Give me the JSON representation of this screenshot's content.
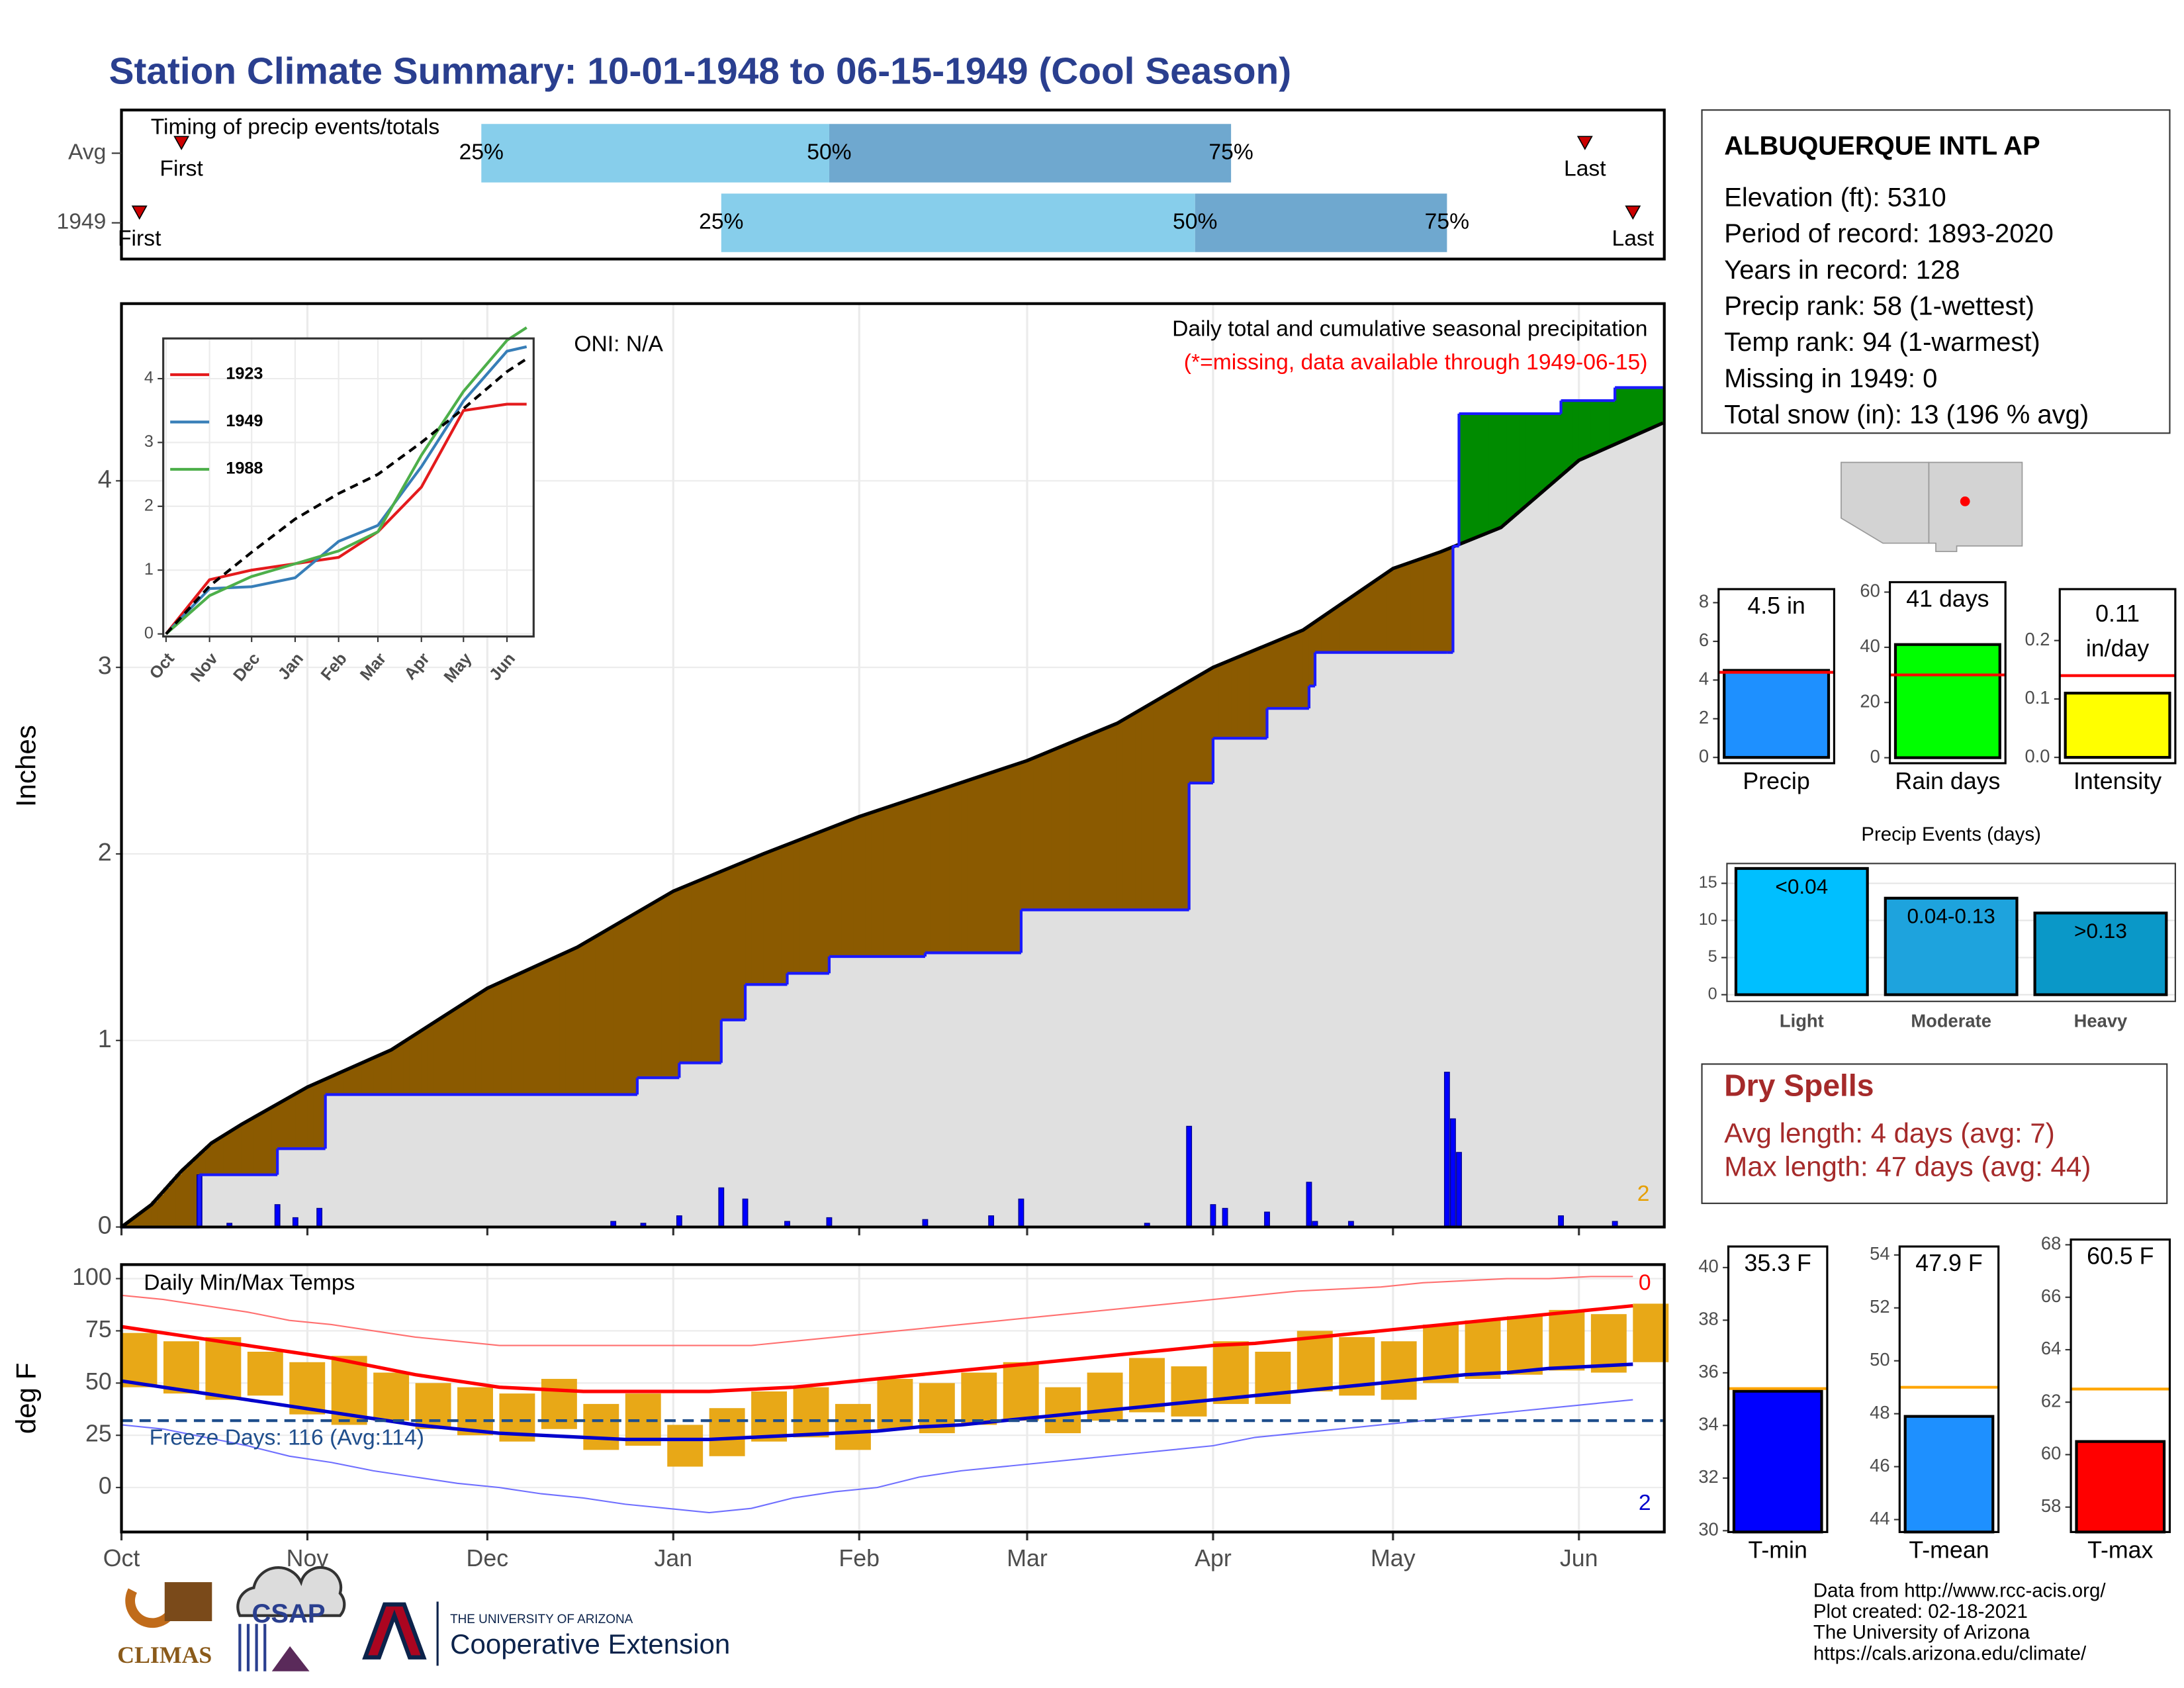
{
  "title": "Station Climate Summary: 10-01-1948 to 06-15-1949 (Cool Season)",
  "station": {
    "name": "ALBUQUERQUE INTL AP",
    "lines": [
      "Elevation (ft): 5310",
      "Period of record: 1893-2020",
      "Years in record: 128",
      "Precip rank: 58 (1-wettest)",
      "Temp rank: 94 (1-warmest)",
      "Missing in 1949: 0",
      "Total snow (in): 13 (196 % avg)"
    ]
  },
  "dry_spells": {
    "title": "Dry Spells",
    "lines": [
      "Avg length: 4 days (avg: 7)",
      "Max length: 47 days (avg: 44)"
    ]
  },
  "footer": {
    "credits": [
      "Data from http://www.rcc-acis.org/",
      "Plot created: 02-18-2021",
      "The University of Arizona",
      "https://cals.arizona.edu/climate/"
    ],
    "logos": [
      "CLIMAS",
      "CSAP",
      "THE UNIVERSITY OF ARIZONA",
      "Cooperative Extension"
    ]
  },
  "chart_data": [
    {
      "type": "timing",
      "title": "Timing of precip events/totals",
      "xlim": [
        0,
        257
      ],
      "rows": [
        {
          "name": "Avg",
          "first": 10,
          "p25": 60,
          "p50": 118,
          "p75": 185,
          "last": 244
        },
        {
          "name": "1949",
          "first": 3,
          "p25": 100,
          "p50": 179,
          "p75": 221,
          "last": 252
        }
      ],
      "labels": {
        "first": "First",
        "p25": "25%",
        "p50": "50%",
        "p75": "75%",
        "last": "Last"
      },
      "colors": {
        "lower": "#87ceeb",
        "upper": "#6fa8cf",
        "marker": "#cc0000"
      }
    },
    {
      "type": "area",
      "title": "Daily total and cumulative seasonal precipitation",
      "subtitle": "(*=missing, data available through 1949-06-15)",
      "annotation": "ONI: N/A",
      "count_annotation": 2,
      "ylabel": "Inches",
      "xlim": [
        0,
        257
      ],
      "xticks": [
        0,
        31,
        61,
        92,
        123,
        151,
        182,
        212,
        243
      ],
      "ylim": [
        0,
        4.95
      ],
      "yticks": [
        0,
        1,
        2,
        3,
        4
      ],
      "grid": true,
      "series": [
        {
          "color": "#000000",
          "x": [
            0,
            5,
            10,
            15,
            20,
            31,
            45,
            61,
            76,
            92,
            107,
            123,
            137,
            151,
            166,
            182,
            197,
            212,
            220,
            230,
            243,
            257
          ],
          "values": [
            0,
            0.12,
            0.3,
            0.45,
            0.55,
            0.75,
            0.95,
            1.28,
            1.5,
            1.8,
            2.0,
            2.2,
            2.35,
            2.5,
            2.7,
            3.0,
            3.2,
            3.53,
            3.62,
            3.75,
            4.11,
            4.31
          ]
        },
        {
          "color": "#1a1aff",
          "x": [
            0,
            13,
            26,
            34,
            86,
            93,
            100,
            104,
            111,
            118,
            134,
            150,
            178,
            182,
            191,
            198,
            199,
            221,
            222,
            223,
            240,
            249,
            257
          ],
          "values": [
            0,
            0.28,
            0.42,
            0.71,
            0.8,
            0.88,
            1.11,
            1.3,
            1.36,
            1.45,
            1.47,
            1.7,
            2.38,
            2.62,
            2.78,
            2.9,
            3.08,
            3.08,
            3.65,
            4.36,
            4.43,
            4.5,
            4.5
          ]
        }
      ],
      "daily": {
        "color": "#0000ff",
        "x": [
          13,
          18,
          26,
          29,
          33,
          82,
          87,
          93,
          100,
          104,
          111,
          118,
          134,
          145,
          150,
          171,
          178,
          182,
          184,
          191,
          198,
          199,
          205,
          221,
          222,
          223,
          240,
          249
        ],
        "values": [
          0.28,
          0.02,
          0.12,
          0.05,
          0.1,
          0.03,
          0.02,
          0.06,
          0.21,
          0.15,
          0.03,
          0.05,
          0.04,
          0.06,
          0.15,
          0.02,
          0.54,
          0.12,
          0.1,
          0.08,
          0.24,
          0.03,
          0.03,
          0.83,
          0.58,
          0.4,
          0.06,
          0.03
        ]
      },
      "colors": {
        "area": "#e0e0e0",
        "below": "#8b5a00",
        "above": "#008b00",
        "subtitle": "#ff0000",
        "count": "#e69f00"
      }
    },
    {
      "type": "line",
      "legend": "top-left",
      "x": [
        0,
        31,
        61,
        92,
        123,
        151,
        182,
        212,
        243,
        257
      ],
      "xlim": [
        -2,
        262
      ],
      "xticks": [
        {
          "value": 0,
          "label": "Oct"
        },
        {
          "value": 31,
          "label": "Nov"
        },
        {
          "value": 61,
          "label": "Dec"
        },
        {
          "value": 92,
          "label": "Jan"
        },
        {
          "value": 123,
          "label": "Feb"
        },
        {
          "value": 151,
          "label": "Mar"
        },
        {
          "value": 182,
          "label": "Apr"
        },
        {
          "value": 212,
          "label": "May"
        },
        {
          "value": 243,
          "label": "Jun"
        }
      ],
      "ylim": [
        -0.04,
        4.63
      ],
      "yticks": [
        0,
        1,
        2,
        3,
        4
      ],
      "grid": true,
      "series": [
        {
          "name": "1923",
          "color": "#e41a1c",
          "values": [
            0,
            0.85,
            1.0,
            1.1,
            1.2,
            1.6,
            2.3,
            3.5,
            3.6,
            3.6
          ]
        },
        {
          "name": "1949",
          "color": "#377eb8",
          "values": [
            0,
            0.71,
            0.74,
            0.88,
            1.45,
            1.7,
            2.62,
            3.65,
            4.43,
            4.5
          ]
        },
        {
          "name": "1988",
          "color": "#4daf4a",
          "values": [
            0,
            0.6,
            0.9,
            1.1,
            1.3,
            1.6,
            2.8,
            3.8,
            4.6,
            4.8
          ]
        }
      ],
      "average": [
        0,
        0.75,
        1.28,
        1.8,
        2.2,
        2.5,
        3.0,
        3.53,
        4.11,
        4.31
      ]
    },
    {
      "type": "gauge",
      "category": "Precip",
      "values": [
        4.5
      ],
      "value_labels": [
        "4.5 in"
      ],
      "average": 4.4,
      "color": "#1e90ff",
      "average_color": "#ff0000",
      "ylim": [
        -0.3,
        8.7
      ],
      "yticks": [
        0,
        2,
        4,
        6,
        8
      ]
    },
    {
      "type": "gauge",
      "category": "Rain days",
      "values": [
        41
      ],
      "value_labels": [
        "41 days"
      ],
      "average": 30,
      "color": "#00ff00",
      "average_color": "#ff0000",
      "ylim": [
        -2,
        63.6
      ],
      "yticks": [
        0,
        20,
        40,
        60
      ]
    },
    {
      "type": "gauge",
      "category": "Intensity",
      "values": [
        0.11
      ],
      "value_labels": [
        "0.11 in/day"
      ],
      "average": 0.14,
      "color": "#ffff00",
      "average_color": "#ff0000",
      "ylim": [
        -0.01,
        0.288
      ],
      "yticks": [
        {
          "value": 0,
          "label": "0.0"
        },
        0.1,
        0.2
      ]
    },
    {
      "type": "bar",
      "title": "Precip Events (days)",
      "categories": [
        "Light",
        "Moderate",
        "Heavy"
      ],
      "values": [
        17,
        13,
        11
      ],
      "bar_labels": [
        "<0.04",
        "0.04-0.13",
        ">0.13"
      ],
      "colors": [
        "#00bfff",
        "#1ea3dd",
        "#0a98c8"
      ],
      "ylim": [
        -0.9,
        17.67
      ],
      "yticks": [
        0,
        5,
        10,
        15
      ],
      "grid": true
    },
    {
      "type": "gauge",
      "category": "T-min",
      "values": [
        35.3
      ],
      "value_labels": [
        "35.3 F"
      ],
      "average": 35.4,
      "color": "#0000ff",
      "average_color": "#ffa500",
      "ylim": [
        29.95,
        40.8
      ],
      "yticks": [
        30,
        32,
        34,
        36,
        38,
        40
      ]
    },
    {
      "type": "gauge",
      "category": "T-mean",
      "values": [
        47.9
      ],
      "value_labels": [
        "47.9 F"
      ],
      "average": 49,
      "color": "#1e90ff",
      "average_color": "#ffa500",
      "ylim": [
        43.53,
        54.32
      ],
      "yticks": [
        44,
        46,
        48,
        50,
        52,
        54
      ]
    },
    {
      "type": "gauge",
      "category": "T-max",
      "values": [
        60.5
      ],
      "value_labels": [
        "60.5 F"
      ],
      "average": 62.5,
      "color": "#ff0000",
      "average_color": "#ffa500",
      "ylim": [
        57.05,
        68.2
      ],
      "yticks": [
        58,
        60,
        62,
        64,
        66,
        68
      ]
    },
    {
      "type": "temperature",
      "title": "Daily Min/Max Temps",
      "ylabel": "deg F",
      "annotation": "Freeze Days: 116 (Avg:114)",
      "freeze_line": 32,
      "record_highs": 0,
      "record_lows": 2,
      "xlim": [
        0,
        257
      ],
      "xticks": [
        {
          "value": 0,
          "label": "Oct"
        },
        {
          "value": 31,
          "label": "Nov"
        },
        {
          "value": 61,
          "label": "Dec"
        },
        {
          "value": 92,
          "label": "Jan"
        },
        {
          "value": 123,
          "label": "Feb"
        },
        {
          "value": 151,
          "label": "Mar"
        },
        {
          "value": 182,
          "label": "Apr"
        },
        {
          "value": 212,
          "label": "May"
        },
        {
          "value": 243,
          "label": "Jun"
        }
      ],
      "ylim": [
        -21.3,
        106.7
      ],
      "yticks": [
        0,
        25,
        50,
        75,
        100
      ],
      "grid": true,
      "x": [
        0,
        7,
        14,
        21,
        28,
        35,
        42,
        49,
        56,
        63,
        70,
        77,
        84,
        91,
        98,
        105,
        112,
        119,
        126,
        133,
        140,
        147,
        154,
        161,
        168,
        175,
        182,
        189,
        196,
        203,
        210,
        217,
        224,
        231,
        238,
        245,
        252
      ],
      "min": [
        48,
        45,
        42,
        44,
        35,
        30,
        32,
        28,
        25,
        22,
        28,
        18,
        20,
        10,
        15,
        22,
        24,
        18,
        28,
        26,
        30,
        32,
        26,
        32,
        36,
        34,
        40,
        40,
        46,
        44,
        42,
        50,
        52,
        54,
        56,
        55,
        60
      ],
      "max": [
        74,
        70,
        72,
        65,
        60,
        63,
        55,
        50,
        48,
        45,
        52,
        40,
        45,
        30,
        38,
        46,
        48,
        40,
        52,
        50,
        55,
        60,
        48,
        55,
        62,
        58,
        70,
        65,
        75,
        72,
        70,
        78,
        80,
        82,
        85,
        83,
        88
      ],
      "avg_high": [
        77,
        74,
        71,
        68,
        65,
        62,
        58,
        54,
        51,
        48,
        47,
        46,
        46,
        46,
        46,
        47,
        48,
        50,
        52,
        54,
        56,
        58,
        60,
        62,
        64,
        66,
        68,
        69,
        71,
        73,
        75,
        77,
        79,
        81,
        83,
        85,
        87
      ],
      "avg_low": [
        51,
        48,
        45,
        42,
        39,
        36,
        33,
        30,
        28,
        26,
        25,
        24,
        23,
        23,
        23,
        24,
        25,
        26,
        27,
        29,
        30,
        32,
        34,
        36,
        38,
        40,
        42,
        44,
        46,
        48,
        50,
        52,
        54,
        55,
        57,
        58,
        59
      ],
      "record_high": [
        92,
        90,
        87,
        84,
        80,
        78,
        75,
        72,
        70,
        68,
        68,
        68,
        68,
        68,
        68,
        68,
        70,
        72,
        74,
        76,
        78,
        80,
        82,
        84,
        86,
        88,
        90,
        92,
        94,
        95,
        96,
        98,
        99,
        100,
        100,
        101,
        101
      ],
      "record_low": [
        30,
        28,
        24,
        20,
        15,
        12,
        8,
        5,
        2,
        0,
        -3,
        -5,
        -8,
        -10,
        -12,
        -10,
        -5,
        -2,
        0,
        5,
        8,
        10,
        12,
        14,
        16,
        18,
        20,
        24,
        26,
        28,
        30,
        32,
        34,
        36,
        38,
        40,
        42
      ],
      "colors": {
        "bars": "#e8a817",
        "avg_high": "#ff0000",
        "avg_low": "#0000cc",
        "record_high": "#ff7070",
        "record_low": "#6f6fff",
        "freeze": "#1f4e8c"
      }
    }
  ]
}
